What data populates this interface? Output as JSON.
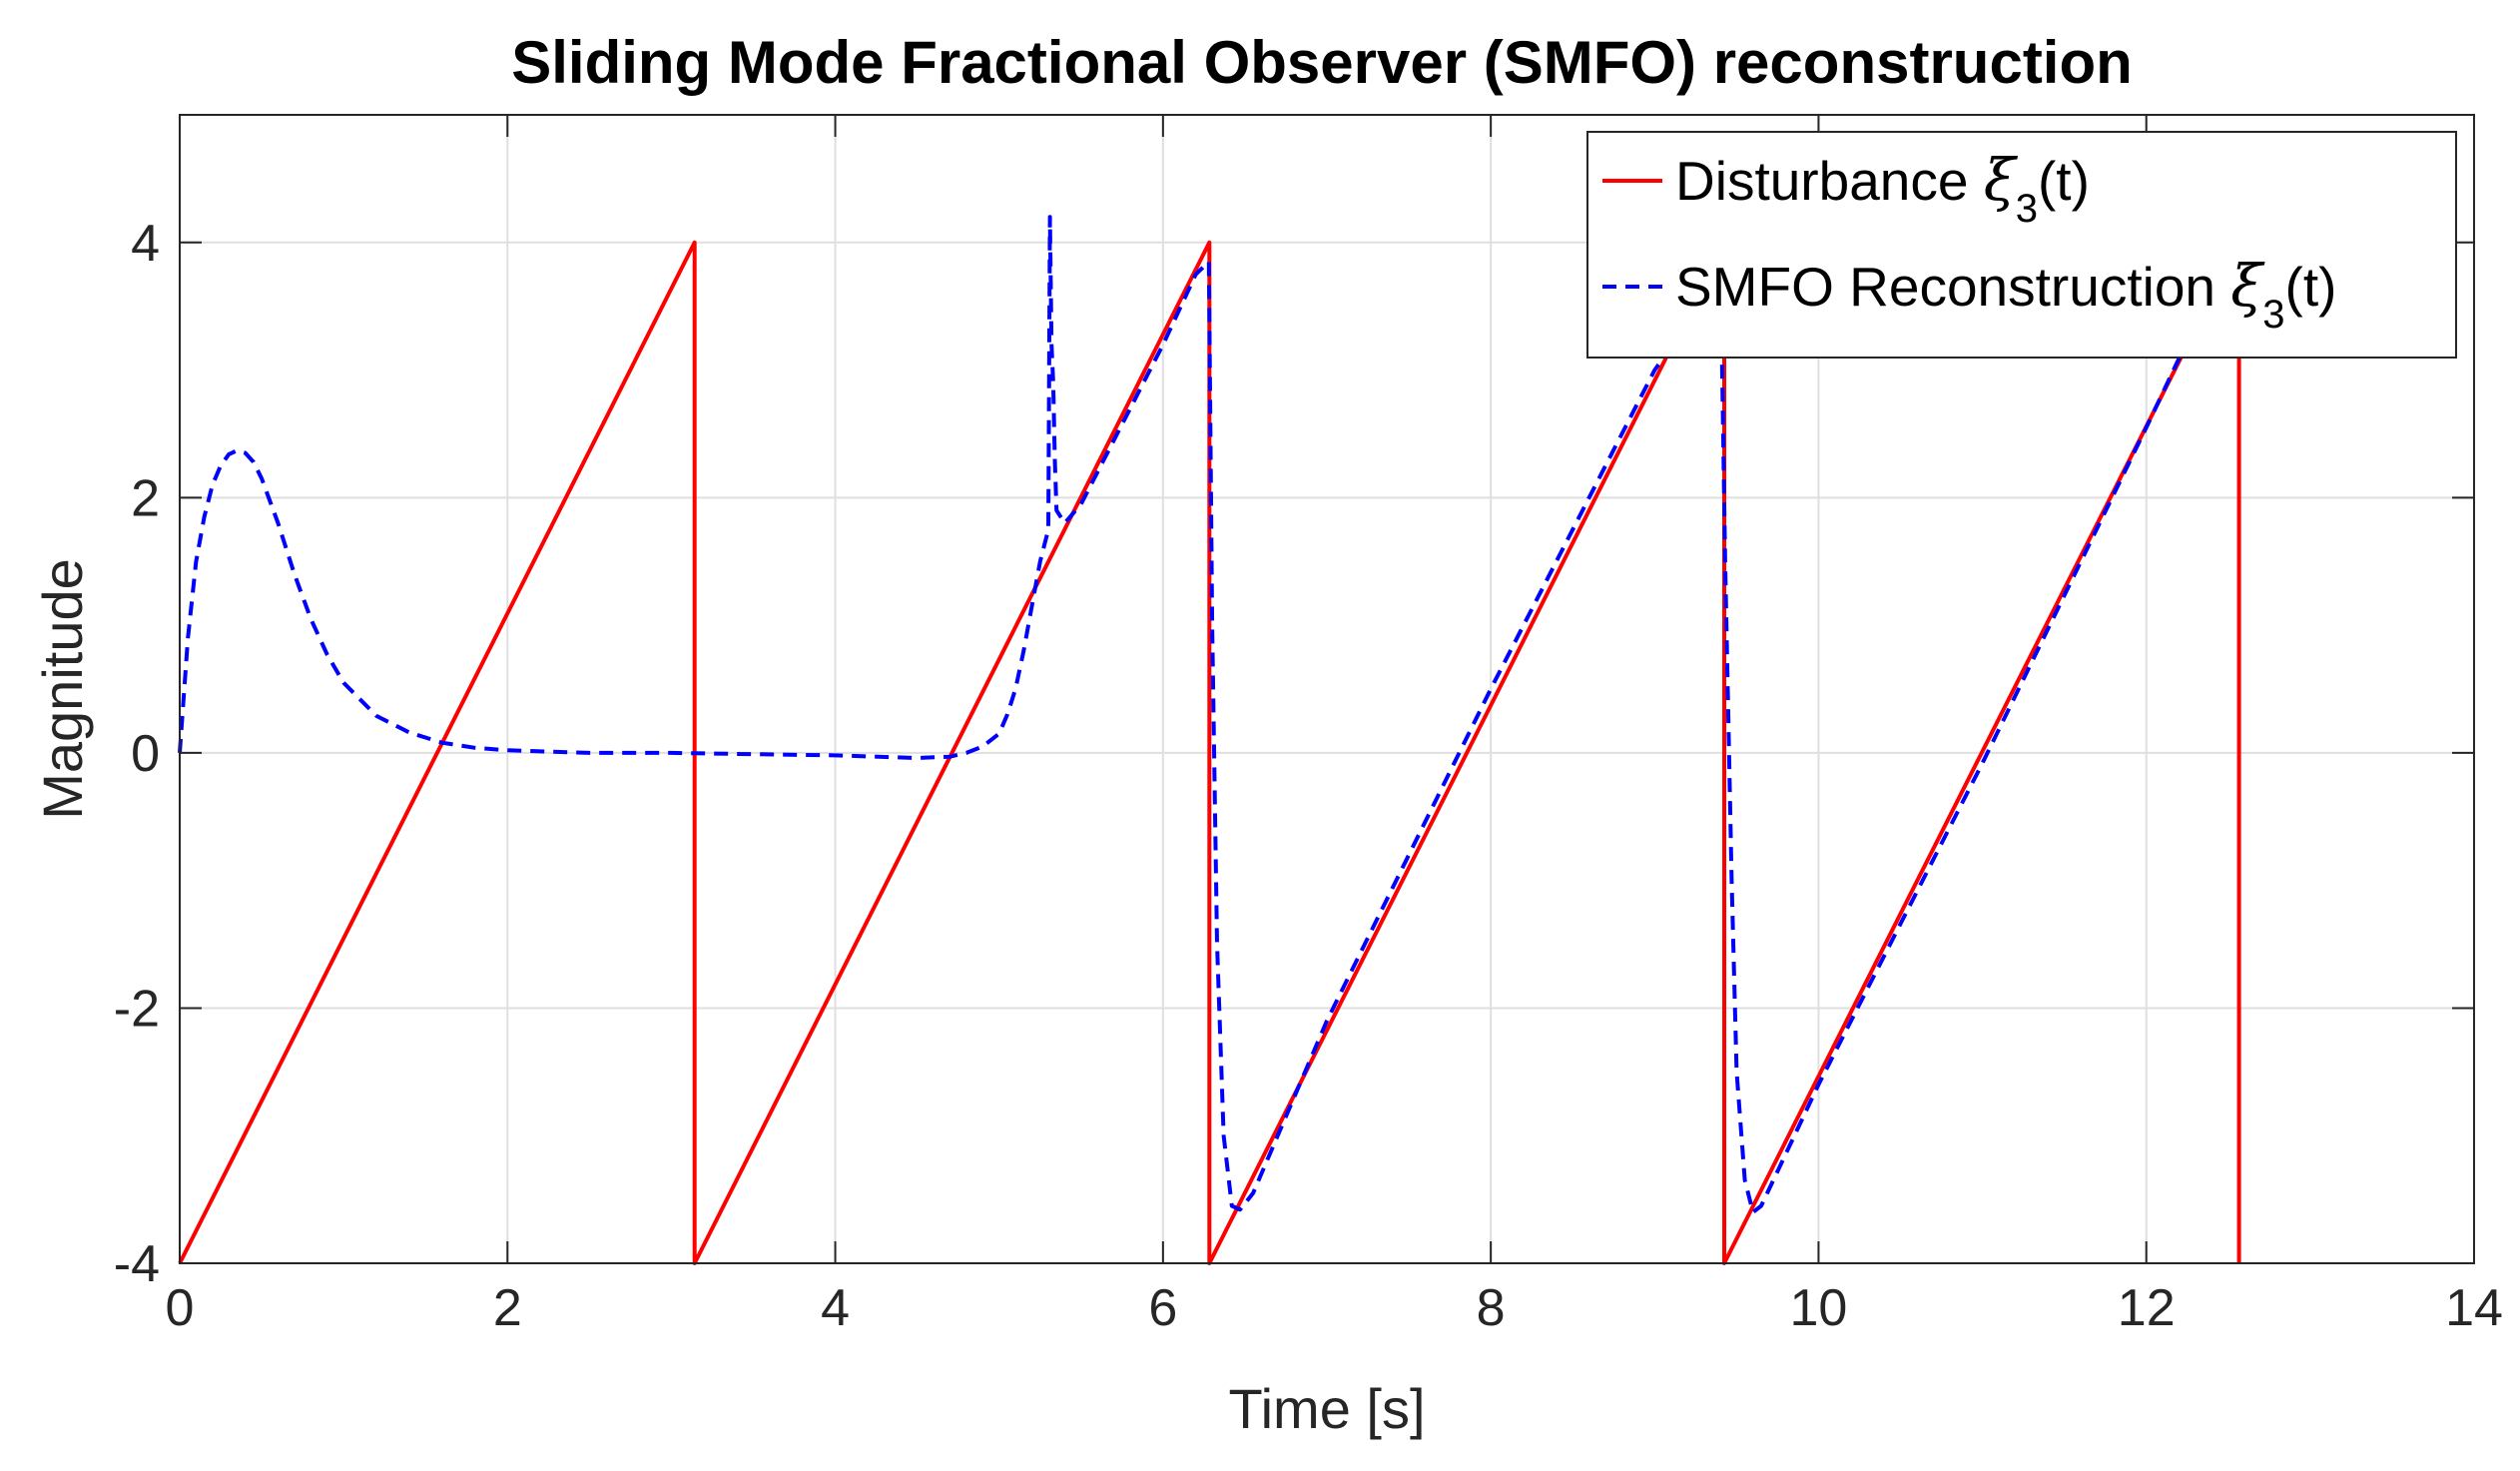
{
  "chart_data": {
    "type": "line",
    "title": "Sliding Mode Fractional Observer (SMFO) reconstruction",
    "xlabel": "Time [s]",
    "ylabel": "Magnitude",
    "xlim": [
      0,
      14
    ],
    "ylim": [
      -4,
      5
    ],
    "xticks": [
      0,
      2,
      4,
      6,
      8,
      10,
      12,
      14
    ],
    "xtick_labels": [
      "0",
      "2",
      "4",
      "6",
      "8",
      "10",
      "12",
      "14"
    ],
    "yticks": [
      -4,
      -2,
      0,
      2,
      4
    ],
    "ytick_labels": [
      "-4",
      "-2",
      "0",
      "2",
      "4"
    ],
    "grid": true,
    "legend_position": "top-right",
    "series": [
      {
        "name": "Disturbance",
        "legend_label": {
          "prefix": "Disturbance ",
          "symbol": "ξ",
          "subscript": "3",
          "suffix": "(t)"
        },
        "color": "#ff0000",
        "style": "solid",
        "points": [
          [
            0,
            -4
          ],
          [
            3.1416,
            4
          ],
          [
            3.1416,
            -4
          ],
          [
            6.2832,
            4
          ],
          [
            6.2832,
            -4
          ],
          [
            9.4248,
            4
          ],
          [
            9.4248,
            -4
          ],
          [
            12.566,
            4
          ],
          [
            12.566,
            -4
          ]
        ]
      },
      {
        "name": "SMFO Reconstruction",
        "legend_label": {
          "prefix": "SMFO Reconstruction ",
          "symbol": "ξ",
          "subscript": "3",
          "suffix": "(t)"
        },
        "color": "#0000ff",
        "style": "dashed",
        "points": [
          [
            0,
            0
          ],
          [
            0.05,
            0.9
          ],
          [
            0.1,
            1.5
          ],
          [
            0.15,
            1.85
          ],
          [
            0.2,
            2.1
          ],
          [
            0.25,
            2.25
          ],
          [
            0.3,
            2.34
          ],
          [
            0.35,
            2.37
          ],
          [
            0.4,
            2.35
          ],
          [
            0.45,
            2.28
          ],
          [
            0.5,
            2.15
          ],
          [
            0.6,
            1.8
          ],
          [
            0.7,
            1.4
          ],
          [
            0.8,
            1.05
          ],
          [
            0.9,
            0.77
          ],
          [
            1.0,
            0.55
          ],
          [
            1.2,
            0.29
          ],
          [
            1.4,
            0.16
          ],
          [
            1.6,
            0.08
          ],
          [
            1.8,
            0.04
          ],
          [
            2.0,
            0.02
          ],
          [
            2.5,
            0.0
          ],
          [
            3.0,
            0.0
          ],
          [
            3.5,
            -0.01
          ],
          [
            4.0,
            -0.02
          ],
          [
            4.5,
            -0.04
          ],
          [
            4.7,
            -0.03
          ],
          [
            4.8,
            0.0
          ],
          [
            4.9,
            0.05
          ],
          [
            5.0,
            0.15
          ],
          [
            5.05,
            0.3
          ],
          [
            5.1,
            0.5
          ],
          [
            5.15,
            0.8
          ],
          [
            5.2,
            1.15
          ],
          [
            5.25,
            1.5
          ],
          [
            5.3,
            1.75
          ],
          [
            5.31,
            4.2
          ],
          [
            5.32,
            3.2
          ],
          [
            5.33,
            2.9
          ],
          [
            5.34,
            2.3
          ],
          [
            5.35,
            1.9
          ],
          [
            5.4,
            1.8
          ],
          [
            5.5,
            1.95
          ],
          [
            6.0,
            3.2
          ],
          [
            6.2,
            3.75
          ],
          [
            6.28,
            3.85
          ],
          [
            6.3,
            1.0
          ],
          [
            6.33,
            -1.5
          ],
          [
            6.37,
            -3.0
          ],
          [
            6.42,
            -3.55
          ],
          [
            6.47,
            -3.58
          ],
          [
            6.55,
            -3.45
          ],
          [
            7.0,
            -2.1
          ],
          [
            8.0,
            0.5
          ],
          [
            9.0,
            3.0
          ],
          [
            9.3,
            3.55
          ],
          [
            9.41,
            3.15
          ],
          [
            9.43,
            1.5
          ],
          [
            9.47,
            -1.0
          ],
          [
            9.5,
            -2.5
          ],
          [
            9.55,
            -3.35
          ],
          [
            9.6,
            -3.6
          ],
          [
            9.65,
            -3.55
          ],
          [
            10.0,
            -2.6
          ],
          [
            11.0,
            -0.08
          ],
          [
            12.0,
            2.55
          ],
          [
            12.35,
            3.5
          ],
          [
            12.45,
            3.75
          ]
        ]
      }
    ]
  }
}
